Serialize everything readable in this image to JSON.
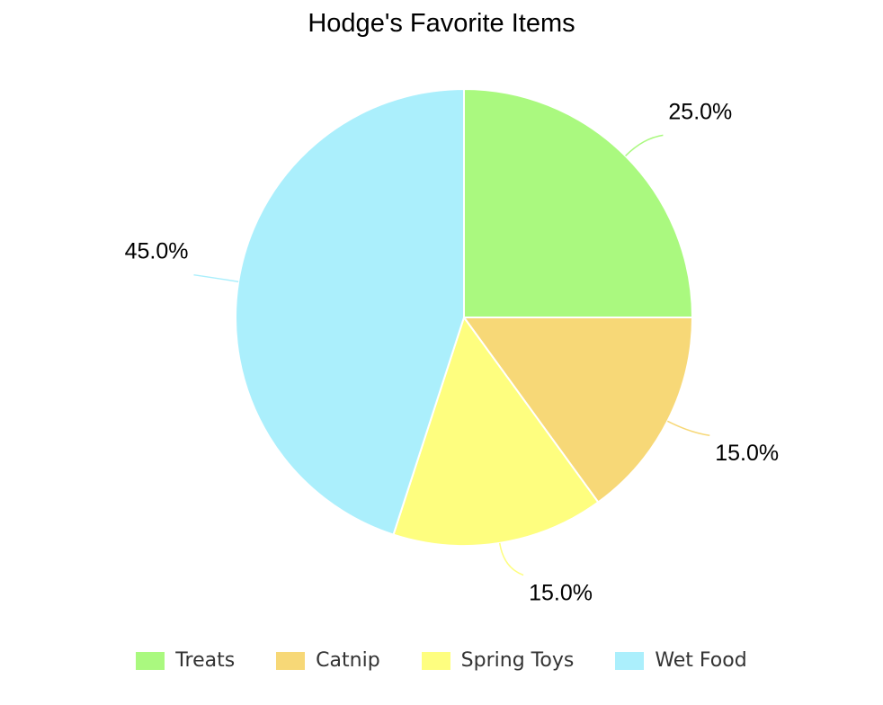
{
  "chart_data": {
    "type": "pie",
    "title": "Hodge's Favorite Items",
    "categories": [
      "Treats",
      "Catnip",
      "Spring Toys",
      "Wet Food"
    ],
    "values": [
      25.0,
      15.0,
      15.0,
      45.0
    ],
    "labels": [
      "25.0%",
      "15.0%",
      "15.0%",
      "45.0%"
    ],
    "colors": [
      "#aaf97f",
      "#f7d877",
      "#fefe7f",
      "#abeffc"
    ],
    "legend_position": "bottom"
  }
}
